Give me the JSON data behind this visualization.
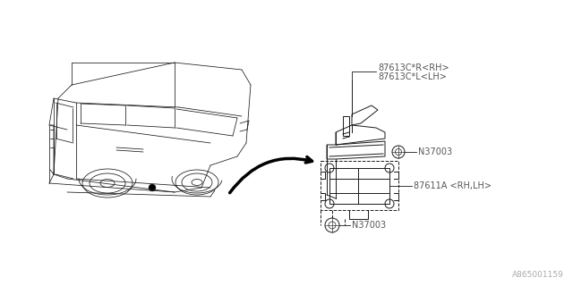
{
  "bg_color": "#ffffff",
  "line_color": "#1a1a1a",
  "fig_label": "A865001159",
  "fig_label_fontsize": 6.5,
  "parts_label_0": "87613C*R<RH>",
  "parts_label_1": "87613C*L<LH>",
  "parts_label_2": "N37003",
  "parts_label_3": "87611A <RH,LH>",
  "parts_label_4": "N37003",
  "label_color": "#555555",
  "lw_car": 0.55,
  "lw_parts": 0.7
}
